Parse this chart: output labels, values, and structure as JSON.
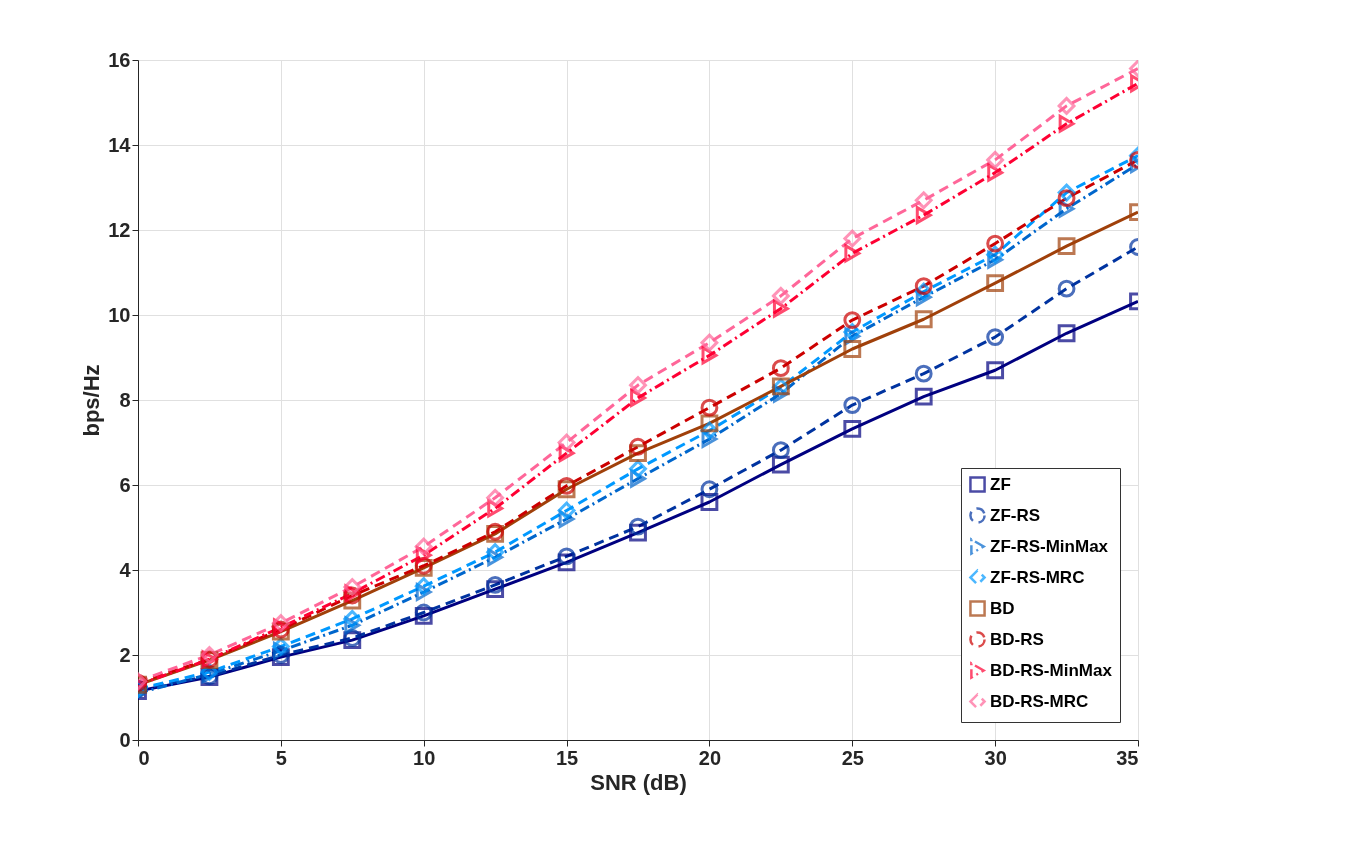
{
  "chart_data": {
    "type": "line",
    "xlabel": "SNR (dB)",
    "ylabel": "bps/Hz",
    "x": [
      0,
      2.5,
      5,
      7.5,
      10,
      12.5,
      15,
      17.5,
      20,
      22.5,
      25,
      27.5,
      30,
      32.5,
      35
    ],
    "xlim": [
      0,
      35
    ],
    "xticks": [
      0,
      5,
      10,
      15,
      20,
      25,
      30,
      35
    ],
    "ylim": [
      0,
      16
    ],
    "yticks": [
      0,
      2,
      4,
      6,
      8,
      10,
      12,
      14,
      16
    ],
    "grid": true,
    "legend": "bottom right",
    "series": [
      {
        "name": "ZF",
        "color": "#000080",
        "marker": "square",
        "line_style": "solid",
        "values": [
          1.15,
          1.48,
          1.95,
          2.35,
          2.92,
          3.55,
          4.18,
          4.88,
          5.6,
          6.48,
          7.32,
          8.08,
          8.7,
          9.57,
          10.32
        ]
      },
      {
        "name": "ZF-RS",
        "color": "#0033a0",
        "marker": "circle",
        "line_style": "dashed",
        "values": [
          1.2,
          1.5,
          2.0,
          2.4,
          3.0,
          3.65,
          4.32,
          5.02,
          5.9,
          6.82,
          7.88,
          8.62,
          9.48,
          10.62,
          11.6
        ]
      },
      {
        "name": "ZF-RS-MinMax",
        "color": "#0066cc",
        "marker": "triangle",
        "line_style": "dashdot",
        "values": [
          1.1,
          1.55,
          2.1,
          2.7,
          3.48,
          4.3,
          5.2,
          6.15,
          7.08,
          8.15,
          9.5,
          10.42,
          11.3,
          12.5,
          13.55
        ]
      },
      {
        "name": "ZF-RS-MRC",
        "color": "#0099ff",
        "marker": "diamond",
        "line_style": "dashed",
        "values": [
          1.2,
          1.6,
          2.2,
          2.85,
          3.62,
          4.42,
          5.4,
          6.38,
          7.28,
          8.3,
          9.6,
          10.55,
          11.42,
          12.88,
          13.75
        ]
      },
      {
        "name": "BD",
        "color": "#a0400a",
        "marker": "square",
        "line_style": "solid",
        "values": [
          1.3,
          1.88,
          2.55,
          3.28,
          4.05,
          4.85,
          5.9,
          6.75,
          7.45,
          8.32,
          9.2,
          9.9,
          10.75,
          11.62,
          12.42
        ]
      },
      {
        "name": "BD-RS",
        "color": "#cc0000",
        "marker": "circle",
        "line_style": "dashed",
        "values": [
          1.35,
          1.9,
          2.6,
          3.4,
          4.1,
          4.9,
          5.98,
          6.9,
          7.82,
          8.75,
          9.88,
          10.68,
          11.68,
          12.75,
          13.65
        ]
      },
      {
        "name": "BD-RS-MinMax",
        "color": "#ff0033",
        "marker": "triangle",
        "line_style": "dashdot",
        "values": [
          1.3,
          1.9,
          2.65,
          3.45,
          4.35,
          5.45,
          6.75,
          8.05,
          9.05,
          10.15,
          11.45,
          12.35,
          13.35,
          14.5,
          15.45
        ]
      },
      {
        "name": "BD-RS-MRC",
        "color": "#ff6699",
        "marker": "diamond",
        "line_style": "dashed",
        "values": [
          1.38,
          2.0,
          2.75,
          3.6,
          4.55,
          5.7,
          7.0,
          8.35,
          9.35,
          10.45,
          11.8,
          12.7,
          13.65,
          14.92,
          15.8
        ]
      }
    ]
  }
}
